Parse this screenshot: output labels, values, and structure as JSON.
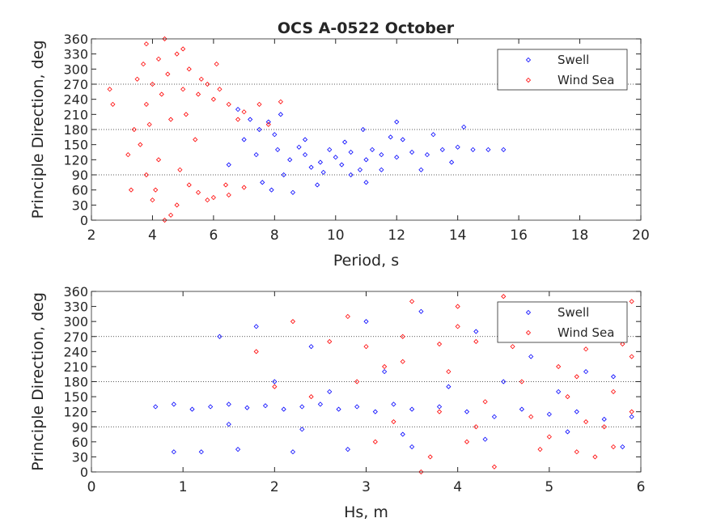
{
  "chart_data": [
    {
      "type": "scatter",
      "title": "OCS A-0522 October",
      "xlabel": "Period, s",
      "ylabel": "Principle Direction, deg",
      "xlim": [
        2,
        20
      ],
      "ylim": [
        0,
        360
      ],
      "xticks": [
        "2",
        "4",
        "6",
        "8",
        "10",
        "12",
        "14",
        "16",
        "18",
        "20"
      ],
      "yticks": [
        "0",
        "30",
        "60",
        "90",
        "120",
        "150",
        "180",
        "210",
        "240",
        "270",
        "300",
        "330",
        "360"
      ],
      "grid_y": [
        90,
        180,
        270
      ],
      "legend_placement": "top-right",
      "series": [
        {
          "name": "Swell",
          "color": "#0000ff",
          "points": [
            [
              8.5,
              120
            ],
            [
              9,
              130
            ],
            [
              9.5,
              115
            ],
            [
              10,
              125
            ],
            [
              10.5,
              135
            ],
            [
              11,
              120
            ],
            [
              11.5,
              130
            ],
            [
              12,
              125
            ],
            [
              10.2,
              110
            ],
            [
              9.8,
              140
            ],
            [
              9.2,
              105
            ],
            [
              8.8,
              145
            ],
            [
              10.8,
              100
            ],
            [
              11.2,
              140
            ],
            [
              12.5,
              135
            ],
            [
              13,
              130
            ],
            [
              13.5,
              140
            ],
            [
              14,
              145
            ],
            [
              14.5,
              140
            ],
            [
              15,
              140
            ],
            [
              15.5,
              140
            ],
            [
              12.2,
              160
            ],
            [
              13.2,
              170
            ],
            [
              14.2,
              185
            ],
            [
              7.5,
              180
            ],
            [
              7.8,
              195
            ],
            [
              8.2,
              210
            ],
            [
              8,
              170
            ],
            [
              7.2,
              200
            ],
            [
              6.8,
              220
            ],
            [
              7,
              160
            ],
            [
              8.3,
              90
            ],
            [
              7.6,
              75
            ],
            [
              7.9,
              60
            ],
            [
              8.6,
              55
            ],
            [
              9.4,
              70
            ],
            [
              10.5,
              90
            ],
            [
              11.5,
              100
            ],
            [
              12.8,
              100
            ],
            [
              9,
              160
            ],
            [
              10.3,
              155
            ],
            [
              11.8,
              165
            ],
            [
              9.6,
              95
            ],
            [
              8.1,
              140
            ],
            [
              7.4,
              130
            ],
            [
              6.5,
              110
            ],
            [
              10.9,
              180
            ],
            [
              12,
              195
            ],
            [
              13.8,
              115
            ],
            [
              11,
              75
            ]
          ]
        },
        {
          "name": "Wind Sea",
          "color": "#ff0000",
          "points": [
            [
              4,
              270
            ],
            [
              4.5,
              290
            ],
            [
              5,
              260
            ],
            [
              5.5,
              250
            ],
            [
              6,
              240
            ],
            [
              4.2,
              320
            ],
            [
              4.8,
              330
            ],
            [
              3.8,
              350
            ],
            [
              4.4,
              360
            ],
            [
              5.2,
              300
            ],
            [
              5.8,
              270
            ],
            [
              6.5,
              230
            ],
            [
              7,
              215
            ],
            [
              7.5,
              230
            ],
            [
              8.2,
              235
            ],
            [
              6.2,
              260
            ],
            [
              3.5,
              280
            ],
            [
              3.8,
              230
            ],
            [
              4.6,
              200
            ],
            [
              3.4,
              180
            ],
            [
              3.6,
              150
            ],
            [
              4.2,
              120
            ],
            [
              3.8,
              90
            ],
            [
              3.3,
              60
            ],
            [
              4,
              40
            ],
            [
              4.6,
              10
            ],
            [
              4.4,
              0
            ],
            [
              4.8,
              30
            ],
            [
              5.5,
              55
            ],
            [
              6,
              45
            ],
            [
              6.5,
              50
            ],
            [
              7,
              65
            ],
            [
              5.8,
              40
            ],
            [
              5.2,
              70
            ],
            [
              4.9,
              100
            ],
            [
              3.2,
              130
            ],
            [
              2.7,
              230
            ],
            [
              2.6,
              260
            ],
            [
              3.9,
              190
            ],
            [
              5.1,
              210
            ],
            [
              6.8,
              200
            ],
            [
              7.8,
              190
            ],
            [
              5.4,
              160
            ],
            [
              4.3,
              250
            ],
            [
              5.6,
              280
            ],
            [
              6.1,
              310
            ],
            [
              3.7,
              310
            ],
            [
              4.1,
              60
            ],
            [
              5,
              340
            ],
            [
              6.4,
              70
            ]
          ]
        }
      ]
    },
    {
      "type": "scatter",
      "title": "",
      "xlabel": "Hs, m",
      "ylabel": "Principle Direction, deg",
      "xlim": [
        0,
        6
      ],
      "ylim": [
        0,
        360
      ],
      "xticks": [
        "0",
        "1",
        "2",
        "3",
        "4",
        "5",
        "6"
      ],
      "yticks": [
        "0",
        "30",
        "60",
        "90",
        "120",
        "150",
        "180",
        "210",
        "240",
        "270",
        "300",
        "330",
        "360"
      ],
      "grid_y": [
        90,
        180,
        270
      ],
      "legend_placement": "top-right",
      "series": [
        {
          "name": "Swell",
          "color": "#0000ff",
          "points": [
            [
              0.7,
              130
            ],
            [
              0.9,
              135
            ],
            [
              1.1,
              125
            ],
            [
              1.3,
              130
            ],
            [
              1.5,
              135
            ],
            [
              1.7,
              128
            ],
            [
              1.9,
              132
            ],
            [
              2.1,
              125
            ],
            [
              2.3,
              130
            ],
            [
              2.5,
              135
            ],
            [
              2.7,
              125
            ],
            [
              2.9,
              130
            ],
            [
              3.1,
              120
            ],
            [
              3.3,
              135
            ],
            [
              3.5,
              125
            ],
            [
              3.8,
              130
            ],
            [
              4.1,
              120
            ],
            [
              4.4,
              110
            ],
            [
              4.7,
              125
            ],
            [
              5,
              115
            ],
            [
              5.3,
              120
            ],
            [
              5.6,
              105
            ],
            [
              5.9,
              110
            ],
            [
              1.2,
              40
            ],
            [
              1.6,
              45
            ],
            [
              2.2,
              40
            ],
            [
              2.8,
              45
            ],
            [
              3.5,
              50
            ],
            [
              1.4,
              270
            ],
            [
              1.8,
              290
            ],
            [
              2.4,
              250
            ],
            [
              3,
              300
            ],
            [
              3.6,
              320
            ],
            [
              4.2,
              280
            ],
            [
              4.8,
              230
            ],
            [
              5.4,
              200
            ],
            [
              2,
              180
            ],
            [
              2.6,
              160
            ],
            [
              3.2,
              200
            ],
            [
              3.9,
              170
            ],
            [
              4.5,
              180
            ],
            [
              5.1,
              160
            ],
            [
              5.7,
              190
            ],
            [
              1.5,
              95
            ],
            [
              2.3,
              85
            ],
            [
              3.4,
              75
            ],
            [
              4.3,
              65
            ],
            [
              5.2,
              80
            ],
            [
              5.8,
              50
            ],
            [
              0.9,
              40
            ]
          ]
        },
        {
          "name": "Wind Sea",
          "color": "#ff0000",
          "points": [
            [
              2.6,
              260
            ],
            [
              3,
              250
            ],
            [
              3.4,
              270
            ],
            [
              3.8,
              255
            ],
            [
              4.2,
              260
            ],
            [
              4.6,
              250
            ],
            [
              5,
              265
            ],
            [
              5.4,
              245
            ],
            [
              5.8,
              255
            ],
            [
              3.5,
              340
            ],
            [
              4,
              330
            ],
            [
              4.5,
              350
            ],
            [
              5,
              320
            ],
            [
              5.5,
              300
            ],
            [
              5.9,
              340
            ],
            [
              3.2,
              210
            ],
            [
              3.9,
              200
            ],
            [
              4.7,
              180
            ],
            [
              5.3,
              190
            ],
            [
              4.9,
              45
            ],
            [
              5.3,
              40
            ],
            [
              5.7,
              50
            ],
            [
              5.5,
              30
            ],
            [
              4.4,
              10
            ],
            [
              3.6,
              0
            ],
            [
              4.1,
              60
            ],
            [
              5,
              70
            ],
            [
              5.6,
              90
            ],
            [
              3.3,
              100
            ],
            [
              4.3,
              140
            ],
            [
              5.2,
              150
            ],
            [
              2.8,
              310
            ],
            [
              2.2,
              300
            ],
            [
              1.8,
              240
            ],
            [
              2.4,
              150
            ],
            [
              3.1,
              60
            ],
            [
              3.7,
              30
            ],
            [
              4.8,
              110
            ],
            [
              5.9,
              120
            ],
            [
              5.1,
              210
            ],
            [
              4,
              290
            ],
            [
              4.6,
              300
            ],
            [
              2.9,
              180
            ],
            [
              3.4,
              220
            ],
            [
              5.7,
              160
            ],
            [
              5.9,
              230
            ],
            [
              4.2,
              90
            ],
            [
              3.8,
              120
            ],
            [
              5.4,
              100
            ],
            [
              2,
              170
            ]
          ]
        }
      ]
    }
  ]
}
